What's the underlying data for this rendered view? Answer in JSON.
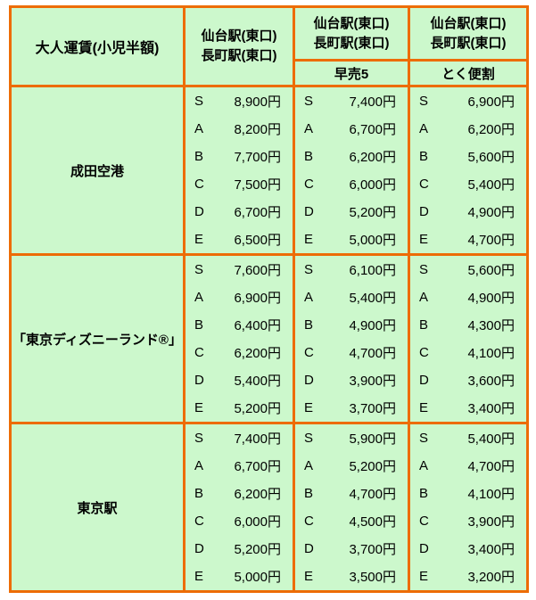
{
  "colors": {
    "border_orange": "#ED6C05",
    "cell_green": "#CCF8CC",
    "title_cell_bg": "#FFFFFF",
    "text": "#000000"
  },
  "table": {
    "title": "大人運賃(小児半額)",
    "col_header_line1": "仙台駅(東口)",
    "col_header_line2": "長町駅(東口)",
    "sub_headers": [
      "早売5",
      "とく便割"
    ],
    "fare_classes": [
      "S",
      "A",
      "B",
      "C",
      "D",
      "E"
    ],
    "groups": [
      {
        "destination": "成田空港",
        "columns": [
          [
            "8,900円",
            "8,200円",
            "7,700円",
            "7,500円",
            "6,700円",
            "6,500円"
          ],
          [
            "7,400円",
            "6,700円",
            "6,200円",
            "6,000円",
            "5,200円",
            "5,000円"
          ],
          [
            "6,900円",
            "6,200円",
            "5,600円",
            "5,400円",
            "4,900円",
            "4,700円"
          ]
        ]
      },
      {
        "destination": "「東京ディズニーランド®」",
        "columns": [
          [
            "7,600円",
            "6,900円",
            "6,400円",
            "6,200円",
            "5,400円",
            "5,200円"
          ],
          [
            "6,100円",
            "5,400円",
            "4,900円",
            "4,700円",
            "3,900円",
            "3,700円"
          ],
          [
            "5,600円",
            "4,900円",
            "4,300円",
            "4,100円",
            "3,600円",
            "3,400円"
          ]
        ]
      },
      {
        "destination": "東京駅",
        "columns": [
          [
            "7,400円",
            "6,700円",
            "6,200円",
            "6,000円",
            "5,200円",
            "5,000円"
          ],
          [
            "5,900円",
            "5,200円",
            "4,700円",
            "4,500円",
            "3,700円",
            "3,500円"
          ],
          [
            "5,400円",
            "4,700円",
            "4,100円",
            "3,900円",
            "3,400円",
            "3,200円"
          ]
        ]
      }
    ]
  }
}
